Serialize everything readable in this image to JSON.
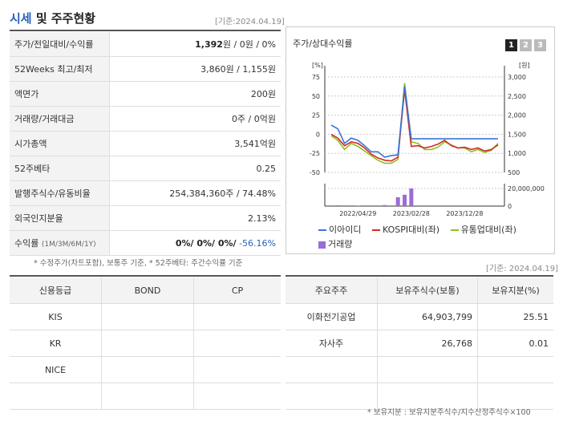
{
  "header": {
    "title_a": "시세",
    "title_b": " 및 주주현황",
    "basis": "[기준:2024.04.19]"
  },
  "price_table": {
    "rows": [
      {
        "label": "주가/전일대비/수익률",
        "value_bold": "1,392",
        "value_rest": "원 / 0원 / 0%"
      },
      {
        "label": "52Weeks 최고/최저",
        "value": "3,860원 / 1,155원"
      },
      {
        "label": "액면가",
        "value": "200원"
      },
      {
        "label": "거래량/거래대금",
        "value": "0주 / 0억원"
      },
      {
        "label": "시가총액",
        "value": "3,541억원"
      },
      {
        "label": "52주베타",
        "value": "0.25"
      },
      {
        "label": "발행주식수/유동비율",
        "value": "254,384,360주 / 74.48%"
      },
      {
        "label": "외국인지분율",
        "value": "2.13%"
      },
      {
        "label": "수익률",
        "label_small": "(1M/3M/6M/1Y)",
        "value_bold": "0%/ 0%/ 0%/",
        "value_neg": " -56.16%"
      }
    ],
    "note": "* 수정주가(차트포함), 보통주 기준, * 52주베타: 주간수익률 기준"
  },
  "chart_panel": {
    "title": "주가/상대수익률",
    "pages": [
      "1",
      "2",
      "3"
    ],
    "legend": {
      "s1": "이아이디",
      "s2": "KOSPI대비(좌)",
      "s3": "유통업대비(좌)",
      "s4": "거래량"
    },
    "colors": {
      "s1": "#3a74d8",
      "s2": "#d22a2a",
      "s3": "#8fbf1e",
      "vol": "#9b6dd6"
    }
  },
  "chart_data": {
    "type": "line",
    "left_unit": "[%]",
    "right_unit": "[원]",
    "left_ticks": [
      "75",
      "50",
      "25",
      "0",
      "-25",
      "-50"
    ],
    "right_ticks": [
      "3,000",
      "2,500",
      "2,000",
      "1,500",
      "1,000",
      "500"
    ],
    "volume_ticks": [
      "20,000,000",
      "0"
    ],
    "x_ticks": [
      "2022/04/29",
      "2023/02/28",
      "2023/12/28"
    ],
    "ylim_left": [
      -50,
      75
    ],
    "series": [
      {
        "name": "이아이디",
        "values": [
          12,
          7,
          -12,
          -5,
          -8,
          -15,
          -23,
          -23,
          -30,
          -28,
          -27,
          63,
          -6,
          -6,
          -6,
          -6,
          -6,
          -6,
          -6,
          -6,
          -6,
          -6,
          -6,
          -6,
          -6,
          -6
        ]
      },
      {
        "name": "KOSPI대비(좌)",
        "values": [
          0,
          -5,
          -15,
          -10,
          -12,
          -18,
          -26,
          -31,
          -34,
          -35,
          -30,
          58,
          -16,
          -15,
          -18,
          -16,
          -13,
          -8,
          -15,
          -18,
          -17,
          -20,
          -18,
          -22,
          -20,
          -14
        ]
      },
      {
        "name": "유통업대비(좌)",
        "values": [
          -2,
          -8,
          -20,
          -12,
          -16,
          -22,
          -28,
          -34,
          -38,
          -38,
          -33,
          67,
          -10,
          -12,
          -20,
          -20,
          -17,
          -10,
          -14,
          -18,
          -18,
          -23,
          -20,
          -24,
          -21,
          -12
        ]
      }
    ],
    "volume": [
      0,
      0.3,
      0,
      0,
      0.2,
      0,
      0,
      0,
      0.4,
      0,
      3.5,
      4.5,
      7,
      0,
      0,
      0,
      0,
      0,
      0,
      0,
      0,
      0,
      0,
      0,
      0,
      0
    ]
  },
  "credit_table": {
    "headers": [
      "신용등급",
      "BOND",
      "CP"
    ],
    "rows": [
      [
        "KIS",
        "",
        ""
      ],
      [
        "KR",
        "",
        ""
      ],
      [
        "NICE",
        "",
        ""
      ],
      [
        "",
        "",
        ""
      ]
    ]
  },
  "holder_table": {
    "basis": "[기준: 2024.04.19]",
    "headers": [
      "주요주주",
      "보유주식수(보통)",
      "보유지분(%)"
    ],
    "rows": [
      [
        "이화전기공업",
        "64,903,799",
        "25.51"
      ],
      [
        "자사주",
        "26,768",
        "0.01"
      ],
      [
        "",
        "",
        ""
      ],
      [
        "",
        "",
        ""
      ]
    ],
    "note": "* 보유지분 : 보유지분주식수/지수산정주식수×100"
  }
}
